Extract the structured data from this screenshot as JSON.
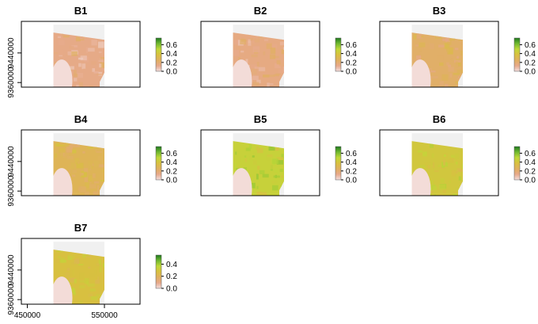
{
  "chart_data": {
    "type": "heatmap",
    "colors": {
      "background_na": "#f0f0f0",
      "ramp": [
        "#f2dede",
        "#e7a98a",
        "#e0b060",
        "#d8c040",
        "#c0d838",
        "#70b830",
        "#1f7a1f"
      ],
      "frame": "#000000"
    },
    "panels": [
      {
        "title": "B1",
        "legend_ticks": [
          "0.6",
          "0.4",
          "0.2",
          "0.0"
        ],
        "max": 0.75,
        "tone": 0.18,
        "show_y_ticks": true,
        "show_x_ticks": false
      },
      {
        "title": "B2",
        "legend_ticks": [
          "0.6",
          "0.4",
          "0.2",
          "0.0"
        ],
        "max": 0.75,
        "tone": 0.2,
        "show_y_ticks": false,
        "show_x_ticks": false
      },
      {
        "title": "B3",
        "legend_ticks": [
          "0.6",
          "0.4",
          "0.2",
          "0.0"
        ],
        "max": 0.75,
        "tone": 0.3,
        "show_y_ticks": false,
        "show_x_ticks": false
      },
      {
        "title": "B4",
        "legend_ticks": [
          "0.6",
          "0.4",
          "0.2",
          "0.0"
        ],
        "max": 0.75,
        "tone": 0.38,
        "show_y_ticks": true,
        "show_x_ticks": false
      },
      {
        "title": "B5",
        "legend_ticks": [
          "0.6",
          "0.4",
          "0.2",
          "0.0"
        ],
        "max": 0.75,
        "tone": 0.62,
        "show_y_ticks": false,
        "show_x_ticks": false
      },
      {
        "title": "B6",
        "legend_ticks": [
          "0.6",
          "0.4",
          "0.2",
          "0.0"
        ],
        "max": 0.75,
        "tone": 0.55,
        "show_y_ticks": false,
        "show_x_ticks": false
      },
      {
        "title": "B7",
        "legend_ticks": [
          "0.4",
          "0.2",
          "0.0"
        ],
        "max": 0.55,
        "tone": 0.5,
        "show_y_ticks": true,
        "show_x_ticks": true
      }
    ],
    "y_ticks": [
      "9440000",
      "9360000"
    ],
    "x_ticks": [
      "450000",
      "550000"
    ]
  }
}
